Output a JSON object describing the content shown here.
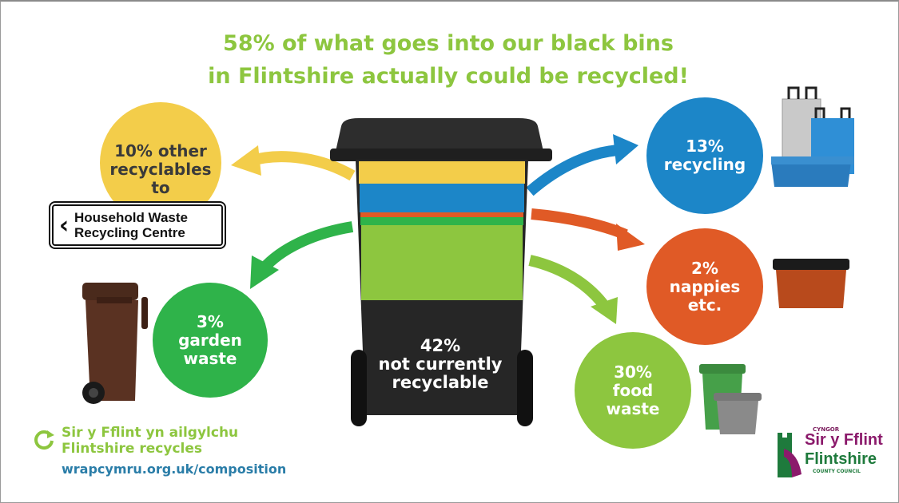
{
  "title": {
    "line1": "58% of what goes into our black bins",
    "line2": "in Flintshire actually could be recycled!"
  },
  "segments": {
    "other": {
      "line1": "10% other",
      "line2": "recyclables",
      "line3": "to",
      "color": "#f3cd4a"
    },
    "recycling": {
      "line1": "13%",
      "line2": "recycling",
      "color": "#1c86c8"
    },
    "nappies": {
      "line1": "2%",
      "line2": "nappies",
      "line3": "etc.",
      "color": "#e05a26"
    },
    "food": {
      "line1": "30%",
      "line2": "food",
      "line3": "waste",
      "color": "#8dc63f"
    },
    "garden": {
      "line1": "3%",
      "line2": "garden",
      "line3": "waste",
      "color": "#2fb34a"
    }
  },
  "sign": {
    "line1": "Household Waste",
    "line2": "Recycling Centre",
    "icon": "chevron-left-icon"
  },
  "bin": {
    "line1": "42%",
    "line2": "not currently",
    "line3": "recyclable"
  },
  "brand": {
    "line1": "Sir y Fflint yn ailgylchu",
    "line2": "Flintshire recycles",
    "url": "wrapcymru.org.uk/composition",
    "icon": "recycle-arrow-icon"
  },
  "council": {
    "cyngor": "CYNGOR",
    "welsh": "Sir y Fflint",
    "english": "Flintshire",
    "county": "COUNTY COUNCIL"
  }
}
